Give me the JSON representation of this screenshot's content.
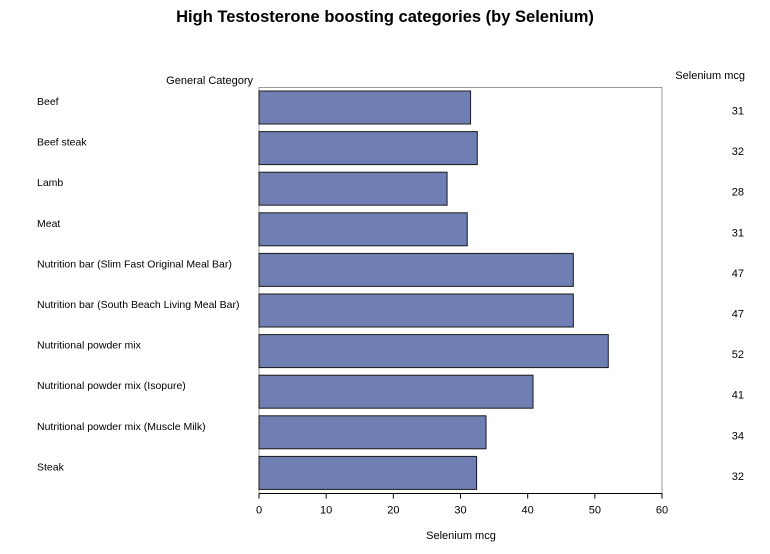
{
  "chart_data": {
    "type": "bar",
    "orientation": "horizontal",
    "title": "High Testosterone boosting categories (by Selenium)",
    "category_header": "General Category",
    "value_header": "Selenium mcg",
    "xlabel": "Selenium mcg",
    "categories": [
      "Beef",
      "Beef steak",
      "Lamb",
      "Meat",
      "Nutrition bar (Slim Fast Original Meal Bar)",
      "Nutrition bar (South Beach Living Meal Bar)",
      "Nutritional powder mix",
      "Nutritional powder mix (Isopure)",
      "Nutritional powder mix (Muscle Milk)",
      "Steak"
    ],
    "values": [
      31.5,
      32.5,
      28,
      31,
      46.8,
      46.8,
      52,
      40.8,
      33.8,
      32.4
    ],
    "value_labels": [
      "31",
      "32",
      "28",
      "31",
      "47",
      "47",
      "52",
      "41",
      "34",
      "32"
    ],
    "xlim": [
      0,
      60
    ],
    "xticks": [
      0,
      10,
      20,
      30,
      40,
      50,
      60
    ],
    "grid": false,
    "legend": "none",
    "colors": {
      "bar_fill": "#6f7eb3",
      "bar_stroke": "#1a1a1a",
      "frame": "#999999"
    }
  }
}
